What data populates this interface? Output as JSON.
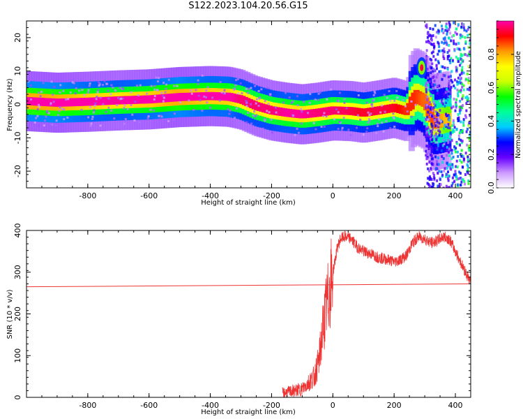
{
  "figure_title": "S122.2023.104.20.56.G15",
  "chart_data": [
    {
      "type": "heatmap",
      "title": "",
      "xlabel": "Height of straight line (km)",
      "ylabel": "Frequency (Hz)",
      "xlim": [
        -1000,
        450
      ],
      "ylim": [
        -25,
        25
      ],
      "x_ticks": [
        -800,
        -600,
        -400,
        -200,
        0,
        200,
        400
      ],
      "y_ticks": [
        -20,
        -10,
        0,
        10,
        20
      ],
      "colorbar": {
        "label": "Normalized spectral amplitude",
        "range": [
          0,
          1
        ],
        "ticks": [
          "0.0",
          "0.2",
          "0.4",
          "0.6",
          "0.8"
        ],
        "colormap": [
          "#ffffff",
          "#cc99ff",
          "#6600ff",
          "#0000ff",
          "#00ccff",
          "#00ff99",
          "#00ff00",
          "#ccff00",
          "#ffff00",
          "#ff9900",
          "#ff0000",
          "#ff00aa"
        ]
      },
      "ridge": [
        {
          "x": -1000,
          "y": 1.0,
          "amp": 1.0
        },
        {
          "x": -900,
          "y": 0.5,
          "amp": 1.0
        },
        {
          "x": -800,
          "y": 0.8,
          "amp": 0.9
        },
        {
          "x": -700,
          "y": 1.2,
          "amp": 0.85
        },
        {
          "x": -600,
          "y": 1.5,
          "amp": 0.9
        },
        {
          "x": -500,
          "y": 2.2,
          "amp": 1.0
        },
        {
          "x": -400,
          "y": 2.5,
          "amp": 0.9
        },
        {
          "x": -340,
          "y": 2.3,
          "amp": 0.9
        },
        {
          "x": -300,
          "y": 1.5,
          "amp": 0.8
        },
        {
          "x": -250,
          "y": -0.5,
          "amp": 0.8
        },
        {
          "x": -200,
          "y": -1.8,
          "amp": 0.8
        },
        {
          "x": -150,
          "y": -2.5,
          "amp": 0.85
        },
        {
          "x": -100,
          "y": -3.0,
          "amp": 0.85
        },
        {
          "x": -50,
          "y": -2.5,
          "amp": 0.8
        },
        {
          "x": 0,
          "y": -1.8,
          "amp": 0.8
        },
        {
          "x": 60,
          "y": -2.0,
          "amp": 0.75
        },
        {
          "x": 100,
          "y": -2.5,
          "amp": 0.7
        },
        {
          "x": 150,
          "y": -1.8,
          "amp": 0.75
        },
        {
          "x": 200,
          "y": -1.0,
          "amp": 0.7
        },
        {
          "x": 240,
          "y": -2.0,
          "amp": 0.6
        },
        {
          "x": 270,
          "y": 2.5,
          "amp": 0.6
        },
        {
          "x": 300,
          "y": 1.0,
          "amp": 0.5
        },
        {
          "x": 330,
          "y": -5.5,
          "amp": 0.55
        },
        {
          "x": 370,
          "y": -4.5,
          "amp": 0.35
        }
      ],
      "secondary_feature": {
        "x": 290,
        "y": 11,
        "amp": 0.8
      }
    },
    {
      "type": "line",
      "title": "",
      "xlabel": "Height of straight line (km)",
      "ylabel": "SNR (10 * v/v)",
      "xlim": [
        -1000,
        450
      ],
      "ylim": [
        0,
        400
      ],
      "x_ticks": [
        -800,
        -600,
        -400,
        -200,
        0,
        200,
        400
      ],
      "y_ticks": [
        0,
        100,
        200,
        300,
        400
      ],
      "series": [
        {
          "color": "#ee3333",
          "x": [
            -165,
            -130,
            -100,
            -80,
            -60,
            -45,
            -35,
            -25,
            -15,
            -5,
            5,
            15,
            25,
            40,
            60,
            80,
            100,
            120,
            150,
            180,
            200,
            220,
            240,
            260,
            280,
            300,
            320,
            340,
            360,
            380,
            400,
            420,
            440,
            450
          ],
          "y": [
            10,
            15,
            20,
            35,
            50,
            90,
            150,
            200,
            240,
            280,
            320,
            360,
            380,
            385,
            380,
            360,
            350,
            345,
            335,
            330,
            325,
            330,
            340,
            370,
            385,
            380,
            370,
            375,
            385,
            380,
            350,
            320,
            290,
            275
          ]
        },
        {
          "color": "#ee3333",
          "x": [
            -1000,
            450
          ],
          "y": [
            265,
            272
          ]
        }
      ]
    }
  ]
}
